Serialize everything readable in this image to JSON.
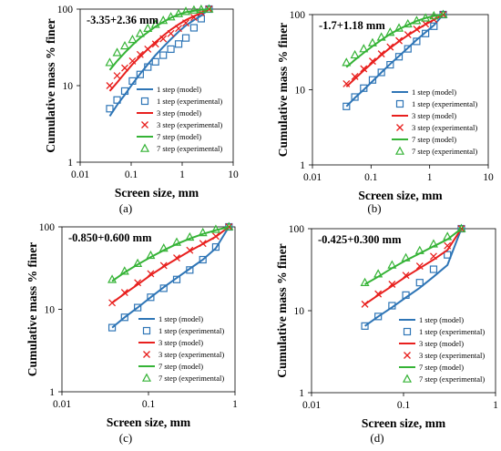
{
  "colors": {
    "one_step": "#2E75B6",
    "three_step": "#E8201E",
    "seven_step": "#35B336",
    "axis": "#000000"
  },
  "chart_data": [
    {
      "type": "line",
      "panel_label": "(a)",
      "annotation": "-3.35+2.36 mm",
      "xlabel": "Screen size, mm",
      "ylabel": "Cumulative mass % finer",
      "xscale": "log",
      "yscale": "log",
      "xlim": [
        0.01,
        10
      ],
      "ylim": [
        1,
        100
      ],
      "xticks": [
        "0.01",
        "0.1",
        "1",
        "10"
      ],
      "yticks": [
        "1",
        "10",
        "100"
      ],
      "grid": false,
      "legend_position": "bottom-right",
      "series": [
        {
          "name": "1 step (model)",
          "kind": "line",
          "color_key": "one_step",
          "x": [
            0.038,
            0.053,
            0.075,
            0.106,
            0.15,
            0.212,
            0.3,
            0.425,
            0.6,
            0.85,
            1.18,
            1.7,
            2.36,
            3.35
          ],
          "y": [
            4.0,
            5.6,
            7.6,
            10.5,
            14.3,
            19.0,
            25.0,
            32.0,
            40.5,
            50.5,
            61.0,
            72.0,
            82.0,
            100
          ]
        },
        {
          "name": "1 step (experimental)",
          "kind": "marker",
          "marker": "square",
          "color_key": "one_step",
          "x": [
            0.038,
            0.053,
            0.075,
            0.106,
            0.15,
            0.212,
            0.3,
            0.425,
            0.6,
            0.85,
            1.18,
            1.7,
            2.36,
            3.35
          ],
          "y": [
            5.0,
            6.5,
            8.5,
            11.5,
            14.0,
            17.5,
            20.5,
            25.0,
            30.0,
            35.0,
            42.0,
            57.0,
            75.0,
            100
          ]
        },
        {
          "name": "3 step (model)",
          "kind": "line",
          "color_key": "three_step",
          "x": [
            0.038,
            0.053,
            0.075,
            0.106,
            0.15,
            0.212,
            0.3,
            0.425,
            0.6,
            0.85,
            1.18,
            1.7,
            2.36,
            3.35
          ],
          "y": [
            8.5,
            11.0,
            14.5,
            19.0,
            24.0,
            30.0,
            37.0,
            45.0,
            54.0,
            63.0,
            72.0,
            81.0,
            89.0,
            100
          ]
        },
        {
          "name": "3 step (experimental)",
          "kind": "marker",
          "marker": "cross",
          "color_key": "three_step",
          "x": [
            0.038,
            0.053,
            0.075,
            0.106,
            0.15,
            0.212,
            0.3,
            0.425,
            0.6,
            0.85,
            1.18,
            1.7,
            2.36,
            3.35
          ],
          "y": [
            10.0,
            13.5,
            17.0,
            21.0,
            25.5,
            30.0,
            35.0,
            41.0,
            48.0,
            56.0,
            66.0,
            78.0,
            90.0,
            100
          ]
        },
        {
          "name": "7 step (model)",
          "kind": "line",
          "color_key": "seven_step",
          "x": [
            0.038,
            0.053,
            0.075,
            0.106,
            0.15,
            0.212,
            0.3,
            0.425,
            0.6,
            0.85,
            1.18,
            1.7,
            2.36,
            3.35
          ],
          "y": [
            16.0,
            21.0,
            27.0,
            34.0,
            42.0,
            50.0,
            59.0,
            68.0,
            77.0,
            85.0,
            91.0,
            95.0,
            98.0,
            100
          ]
        },
        {
          "name": "7 step (experimental)",
          "kind": "marker",
          "marker": "triangle",
          "color_key": "seven_step",
          "x": [
            0.038,
            0.053,
            0.075,
            0.106,
            0.15,
            0.212,
            0.3,
            0.425,
            0.6,
            0.85,
            1.18,
            1.7,
            2.36,
            3.35
          ],
          "y": [
            20.0,
            27.0,
            33.0,
            40.0,
            48.0,
            56.0,
            63.0,
            71.0,
            79.0,
            87.0,
            93.0,
            97.0,
            99.0,
            100
          ]
        }
      ]
    },
    {
      "type": "line",
      "panel_label": "(b)",
      "annotation": "-1.7+1.18 mm",
      "xlabel": "Screen size, mm",
      "ylabel": "Cumulative mass % finer",
      "xscale": "log",
      "yscale": "log",
      "xlim": [
        0.01,
        10
      ],
      "ylim": [
        1,
        100
      ],
      "xticks": [
        "0.01",
        "0.1",
        "1",
        "10"
      ],
      "yticks": [
        "1",
        "10",
        "100"
      ],
      "grid": false,
      "legend_position": "bottom-right",
      "series": [
        {
          "name": "1 step (model)",
          "kind": "line",
          "color_key": "one_step",
          "x": [
            0.038,
            0.053,
            0.075,
            0.106,
            0.15,
            0.212,
            0.3,
            0.425,
            0.6,
            0.85,
            1.18,
            1.7
          ],
          "y": [
            6.0,
            7.8,
            10.0,
            13.0,
            17.0,
            22.0,
            28.0,
            36.0,
            46.0,
            58.0,
            72.0,
            100
          ]
        },
        {
          "name": "1 step (experimental)",
          "kind": "marker",
          "marker": "square",
          "color_key": "one_step",
          "x": [
            0.038,
            0.053,
            0.075,
            0.106,
            0.15,
            0.212,
            0.3,
            0.425,
            0.6,
            0.85,
            1.18,
            1.7
          ],
          "y": [
            6.0,
            8.0,
            10.5,
            13.5,
            17.0,
            21.5,
            27.5,
            35.0,
            44.0,
            56.0,
            70.0,
            100
          ]
        },
        {
          "name": "3 step (model)",
          "kind": "line",
          "color_key": "three_step",
          "x": [
            0.038,
            0.053,
            0.075,
            0.106,
            0.15,
            0.212,
            0.3,
            0.425,
            0.6,
            0.85,
            1.18,
            1.7
          ],
          "y": [
            11.0,
            14.0,
            18.0,
            23.0,
            29.0,
            36.0,
            44.0,
            53.0,
            63.0,
            74.0,
            85.0,
            100
          ]
        },
        {
          "name": "3 step (experimental)",
          "kind": "marker",
          "marker": "cross",
          "color_key": "three_step",
          "x": [
            0.038,
            0.053,
            0.075,
            0.106,
            0.15,
            0.212,
            0.3,
            0.425,
            0.6,
            0.85,
            1.18,
            1.7
          ],
          "y": [
            12.0,
            15.0,
            19.0,
            24.0,
            30.0,
            37.0,
            45.0,
            54.0,
            64.0,
            75.0,
            86.0,
            100
          ]
        },
        {
          "name": "7 step (model)",
          "kind": "line",
          "color_key": "seven_step",
          "x": [
            0.038,
            0.053,
            0.075,
            0.106,
            0.15,
            0.212,
            0.3,
            0.425,
            0.6,
            0.85,
            1.18,
            1.7
          ],
          "y": [
            20.0,
            25.0,
            31.0,
            38.0,
            46.0,
            55.0,
            64.0,
            73.0,
            82.0,
            90.0,
            96.0,
            100
          ]
        },
        {
          "name": "7 step (experimental)",
          "kind": "marker",
          "marker": "triangle",
          "color_key": "seven_step",
          "x": [
            0.038,
            0.053,
            0.075,
            0.106,
            0.15,
            0.212,
            0.3,
            0.425,
            0.6,
            0.85,
            1.18,
            1.7
          ],
          "y": [
            23.0,
            29.0,
            35.0,
            42.0,
            50.0,
            58.0,
            66.0,
            75.0,
            83.0,
            90.0,
            96.0,
            100
          ]
        }
      ]
    },
    {
      "type": "line",
      "panel_label": "(c)",
      "annotation": "-0.850+0.600 mm",
      "xlabel": "Screen size, mm",
      "ylabel": "Cumulative mass % finer",
      "xscale": "log",
      "yscale": "log",
      "xlim": [
        0.01,
        1
      ],
      "ylim": [
        1,
        100
      ],
      "xticks": [
        "0.01",
        "0.1",
        "1"
      ],
      "yticks": [
        "1",
        "10",
        "100"
      ],
      "grid": false,
      "legend_position": "bottom-right",
      "series": [
        {
          "name": "1 step (model)",
          "kind": "line",
          "color_key": "one_step",
          "x": [
            0.038,
            0.053,
            0.075,
            0.106,
            0.15,
            0.212,
            0.3,
            0.425,
            0.6,
            0.85
          ],
          "y": [
            6.0,
            8.0,
            10.5,
            14.0,
            18.5,
            24.0,
            31.0,
            40.0,
            55.0,
            100
          ]
        },
        {
          "name": "1 step (experimental)",
          "kind": "marker",
          "marker": "square",
          "color_key": "one_step",
          "x": [
            0.038,
            0.053,
            0.075,
            0.106,
            0.15,
            0.212,
            0.3,
            0.425,
            0.6,
            0.85
          ],
          "y": [
            6.0,
            8.0,
            10.5,
            14.0,
            18.0,
            23.0,
            30.0,
            40.0,
            57.0,
            100
          ]
        },
        {
          "name": "3 step (model)",
          "kind": "line",
          "color_key": "three_step",
          "x": [
            0.038,
            0.053,
            0.075,
            0.106,
            0.15,
            0.212,
            0.3,
            0.425,
            0.6,
            0.85
          ],
          "y": [
            12.0,
            15.5,
            20.0,
            26.0,
            33.0,
            41.0,
            51.0,
            62.0,
            76.0,
            100
          ]
        },
        {
          "name": "3 step (experimental)",
          "kind": "marker",
          "marker": "cross",
          "color_key": "three_step",
          "x": [
            0.038,
            0.053,
            0.075,
            0.106,
            0.15,
            0.212,
            0.3,
            0.425,
            0.6,
            0.85
          ],
          "y": [
            12.0,
            16.0,
            21.0,
            27.0,
            34.0,
            42.0,
            52.0,
            63.0,
            77.0,
            100
          ]
        },
        {
          "name": "7 step (model)",
          "kind": "line",
          "color_key": "seven_step",
          "x": [
            0.038,
            0.053,
            0.075,
            0.106,
            0.15,
            0.212,
            0.3,
            0.425,
            0.6,
            0.85
          ],
          "y": [
            22.0,
            28.0,
            35.0,
            43.0,
            52.0,
            62.0,
            72.0,
            82.0,
            91.0,
            100
          ]
        },
        {
          "name": "7 step (experimental)",
          "kind": "marker",
          "marker": "triangle",
          "color_key": "seven_step",
          "x": [
            0.038,
            0.053,
            0.075,
            0.106,
            0.15,
            0.212,
            0.3,
            0.425,
            0.6,
            0.85
          ],
          "y": [
            23.0,
            29.0,
            36.0,
            45.0,
            55.0,
            65.0,
            75.0,
            85.0,
            93.0,
            100
          ]
        }
      ]
    },
    {
      "type": "line",
      "panel_label": "(d)",
      "annotation": "-0.425+0.300 mm",
      "xlabel": "Screen size, mm",
      "ylabel": "Cumulative mass % finer",
      "xscale": "log",
      "yscale": "log",
      "xlim": [
        0.01,
        1
      ],
      "ylim": [
        1,
        100
      ],
      "xticks": [
        "0.01",
        "0.1",
        "1"
      ],
      "yticks": [
        "1",
        "10",
        "100"
      ],
      "grid": false,
      "legend_position": "bottom-right",
      "series": [
        {
          "name": "1 step (model)",
          "kind": "line",
          "color_key": "one_step",
          "x": [
            0.038,
            0.053,
            0.075,
            0.106,
            0.15,
            0.212,
            0.3,
            0.425
          ],
          "y": [
            6.5,
            8.5,
            11.0,
            14.5,
            19.0,
            26.0,
            36.0,
            100
          ]
        },
        {
          "name": "1 step (experimental)",
          "kind": "marker",
          "marker": "square",
          "color_key": "one_step",
          "x": [
            0.038,
            0.053,
            0.075,
            0.106,
            0.15,
            0.212,
            0.3,
            0.425
          ],
          "y": [
            6.5,
            8.5,
            11.5,
            15.5,
            22.0,
            32.0,
            48.0,
            100
          ]
        },
        {
          "name": "3 step (model)",
          "kind": "line",
          "color_key": "three_step",
          "x": [
            0.038,
            0.053,
            0.075,
            0.106,
            0.15,
            0.212,
            0.3,
            0.425
          ],
          "y": [
            12.0,
            15.5,
            20.0,
            26.0,
            33.0,
            42.0,
            55.0,
            100
          ]
        },
        {
          "name": "3 step (experimental)",
          "kind": "marker",
          "marker": "cross",
          "color_key": "three_step",
          "x": [
            0.038,
            0.053,
            0.075,
            0.106,
            0.15,
            0.212,
            0.3,
            0.425
          ],
          "y": [
            12.0,
            16.0,
            21.0,
            27.0,
            35.0,
            46.0,
            62.0,
            100
          ]
        },
        {
          "name": "7 step (model)",
          "kind": "line",
          "color_key": "seven_step",
          "x": [
            0.038,
            0.053,
            0.075,
            0.106,
            0.15,
            0.212,
            0.3,
            0.425
          ],
          "y": [
            21.0,
            26.0,
            33.0,
            41.0,
            50.0,
            61.0,
            74.0,
            100
          ]
        },
        {
          "name": "7 step (experimental)",
          "kind": "marker",
          "marker": "triangle",
          "color_key": "seven_step",
          "x": [
            0.038,
            0.053,
            0.075,
            0.106,
            0.15,
            0.212,
            0.3,
            0.425
          ],
          "y": [
            22.0,
            28.0,
            36.0,
            44.0,
            54.0,
            65.0,
            80.0,
            100
          ]
        }
      ]
    }
  ]
}
